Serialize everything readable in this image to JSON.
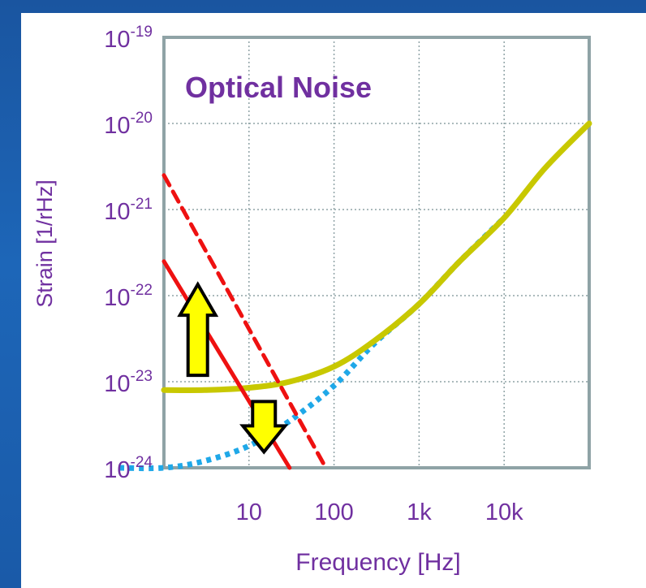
{
  "colors": {
    "frame": "#1c5fae",
    "plot_border": "#8fa3a6",
    "grid": "#8fa3a6",
    "text": "#7030a0",
    "total_noise": "#c8c800",
    "shot_noise": "#1fa8e8",
    "radiation_pressure": "#ee1111",
    "arrow_fill": "#ffff00",
    "arrow_stroke": "#000000"
  },
  "chart_data": {
    "type": "line",
    "title": "Optical Noise",
    "xlabel": "Frequency [Hz]",
    "ylabel": "Strain [1/rHz]",
    "x_scale": "log",
    "y_scale": "log",
    "xlim": [
      1,
      100000
    ],
    "ylim": [
      1e-24,
      1e-19
    ],
    "grid": true,
    "x_ticks": [
      {
        "value": 10,
        "label": "10"
      },
      {
        "value": 100,
        "label": "100"
      },
      {
        "value": 1000,
        "label": "1k"
      },
      {
        "value": 10000,
        "label": "10k"
      }
    ],
    "y_ticks": [
      {
        "value": 1e-19,
        "base": "10",
        "exp": "-19"
      },
      {
        "value": 1e-20,
        "base": "10",
        "exp": "-20"
      },
      {
        "value": 1e-21,
        "base": "10",
        "exp": "-21"
      },
      {
        "value": 1e-22,
        "base": "10",
        "exp": "-22"
      },
      {
        "value": 1e-23,
        "base": "10",
        "exp": "-23"
      },
      {
        "value": 1e-24,
        "base": "10",
        "exp": "-24"
      }
    ],
    "series": [
      {
        "style": "solid-yellow",
        "points": [
          [
            1,
            8e-24
          ],
          [
            3,
            8e-24
          ],
          [
            10,
            8.5e-24
          ],
          [
            30,
            1e-23
          ],
          [
            100,
            1.5e-23
          ],
          [
            300,
            3e-23
          ],
          [
            1000,
            8e-23
          ],
          [
            3000,
            2.5e-22
          ],
          [
            10000,
            8e-22
          ],
          [
            30000,
            3e-21
          ],
          [
            100000,
            1e-20
          ]
        ]
      },
      {
        "style": "dotted-blue",
        "points": [
          [
            0.3,
            1e-24
          ],
          [
            1,
            1e-24
          ],
          [
            3,
            1.2e-24
          ],
          [
            10,
            1.8e-24
          ],
          [
            30,
            3.5e-24
          ],
          [
            100,
            9e-24
          ],
          [
            300,
            2.8e-23
          ],
          [
            1000,
            8e-23
          ],
          [
            3000,
            2.5e-22
          ],
          [
            10000,
            8e-22
          ]
        ]
      },
      {
        "style": "solid-red",
        "points": [
          [
            1,
            2.5e-22
          ],
          [
            30,
            1e-24
          ]
        ]
      },
      {
        "style": "dashed-red",
        "points": [
          [
            1,
            2.5e-21
          ],
          [
            80,
            1e-24
          ]
        ]
      }
    ],
    "annotations": [
      {
        "type": "arrow-up",
        "near_series": "solid-red",
        "at": [
          2.5,
          4e-23
        ]
      },
      {
        "type": "arrow-down",
        "near_series": "solid-red",
        "at": [
          15,
          3e-24
        ]
      }
    ]
  }
}
